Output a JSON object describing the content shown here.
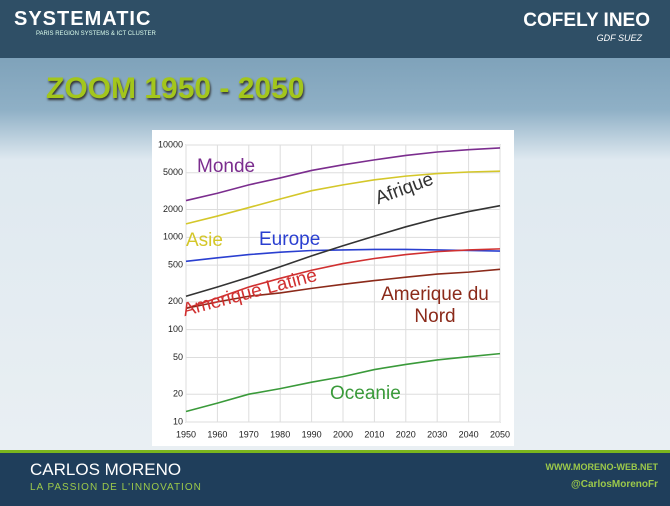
{
  "header": {
    "left_logo": "SYSTEMATIC",
    "left_tagline": "PARIS REGION SYSTEMS & ICT CLUSTER",
    "right_logo": "COFELY INEO",
    "right_tagline": "GDF SUEZ"
  },
  "chart_data": {
    "type": "line",
    "title": "ZOOM 1950 - 2050",
    "x": [
      1950,
      1960,
      1970,
      1980,
      1990,
      2000,
      2010,
      2020,
      2030,
      2040,
      2050
    ],
    "xlim": [
      1950,
      2050
    ],
    "xticks": [
      1950,
      1960,
      1970,
      1980,
      1990,
      2000,
      2010,
      2020,
      2030,
      2040,
      2050
    ],
    "ylim": [
      10,
      10000
    ],
    "yticks": [
      10,
      20,
      50,
      100,
      200,
      500,
      1000,
      2000,
      5000,
      10000
    ],
    "yscale": "log",
    "grid": true,
    "series": [
      {
        "name": "Monde",
        "color": "#7b2d8e",
        "values": [
          2500,
          3000,
          3700,
          4400,
          5300,
          6100,
          6900,
          7700,
          8400,
          8900,
          9300
        ]
      },
      {
        "name": "Asie",
        "color": "#d4c72a",
        "values": [
          1400,
          1700,
          2100,
          2600,
          3200,
          3700,
          4200,
          4600,
          4900,
          5100,
          5200
        ]
      },
      {
        "name": "Europe",
        "color": "#2a3fd0",
        "values": [
          550,
          600,
          650,
          690,
          720,
          730,
          740,
          740,
          730,
          720,
          710
        ]
      },
      {
        "name": "Afrique",
        "color": "#333333",
        "values": [
          230,
          290,
          370,
          480,
          630,
          810,
          1030,
          1300,
          1600,
          1900,
          2200
        ]
      },
      {
        "name": "Amerique Latine",
        "color": "#d03030",
        "values": [
          170,
          220,
          290,
          360,
          440,
          520,
          590,
          650,
          700,
          730,
          750
        ]
      },
      {
        "name": "Amerique du Nord",
        "color": "#8b2a1a",
        "values": [
          170,
          200,
          230,
          250,
          280,
          310,
          340,
          370,
          400,
          420,
          450
        ]
      },
      {
        "name": "Oceanie",
        "color": "#3a9a3a",
        "values": [
          13,
          16,
          20,
          23,
          27,
          31,
          37,
          42,
          47,
          51,
          55
        ]
      }
    ]
  },
  "footer": {
    "name": "CARLOS MORENO",
    "tagline": "LA PASSION DE L'INNOVATION",
    "website": "WWW.MORENO-WEB.NET",
    "twitter": "@CarlosMorenoFr"
  }
}
